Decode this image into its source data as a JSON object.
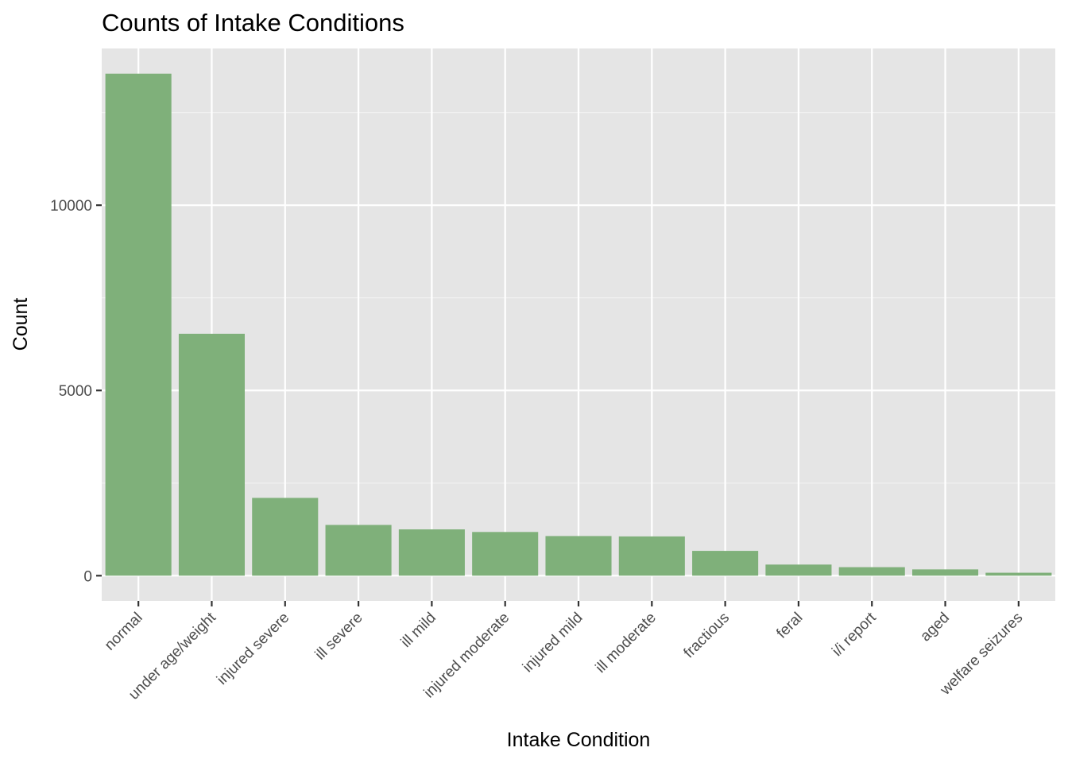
{
  "colors": {
    "panel_background": "#e5e5e5",
    "grid_major": "#ffffff",
    "grid_minor": "#f2f2f2",
    "bar_fill": "#7fb07a",
    "tick_text": "#4d4d4d",
    "tick_mark": "#333333",
    "title_text": "#000000"
  },
  "chart_data": {
    "type": "bar",
    "title": "Counts of Intake Conditions",
    "xlabel": "Intake Condition",
    "ylabel": "Count",
    "categories": [
      "normal",
      "under age/weight",
      "injured severe",
      "ill severe",
      "ill mild",
      "injured moderate",
      "injured mild",
      "ill moderate",
      "fractious",
      "feral",
      "i/i report",
      "aged",
      "welfare seizures"
    ],
    "values": [
      13550,
      6530,
      2100,
      1370,
      1250,
      1180,
      1070,
      1060,
      670,
      300,
      230,
      170,
      80
    ],
    "yticks": [
      0,
      5000,
      10000
    ],
    "ytick_labels": [
      "0",
      "5000",
      "10000"
    ],
    "ylim": [
      -680,
      14230
    ],
    "grid": true,
    "legend": "none"
  }
}
